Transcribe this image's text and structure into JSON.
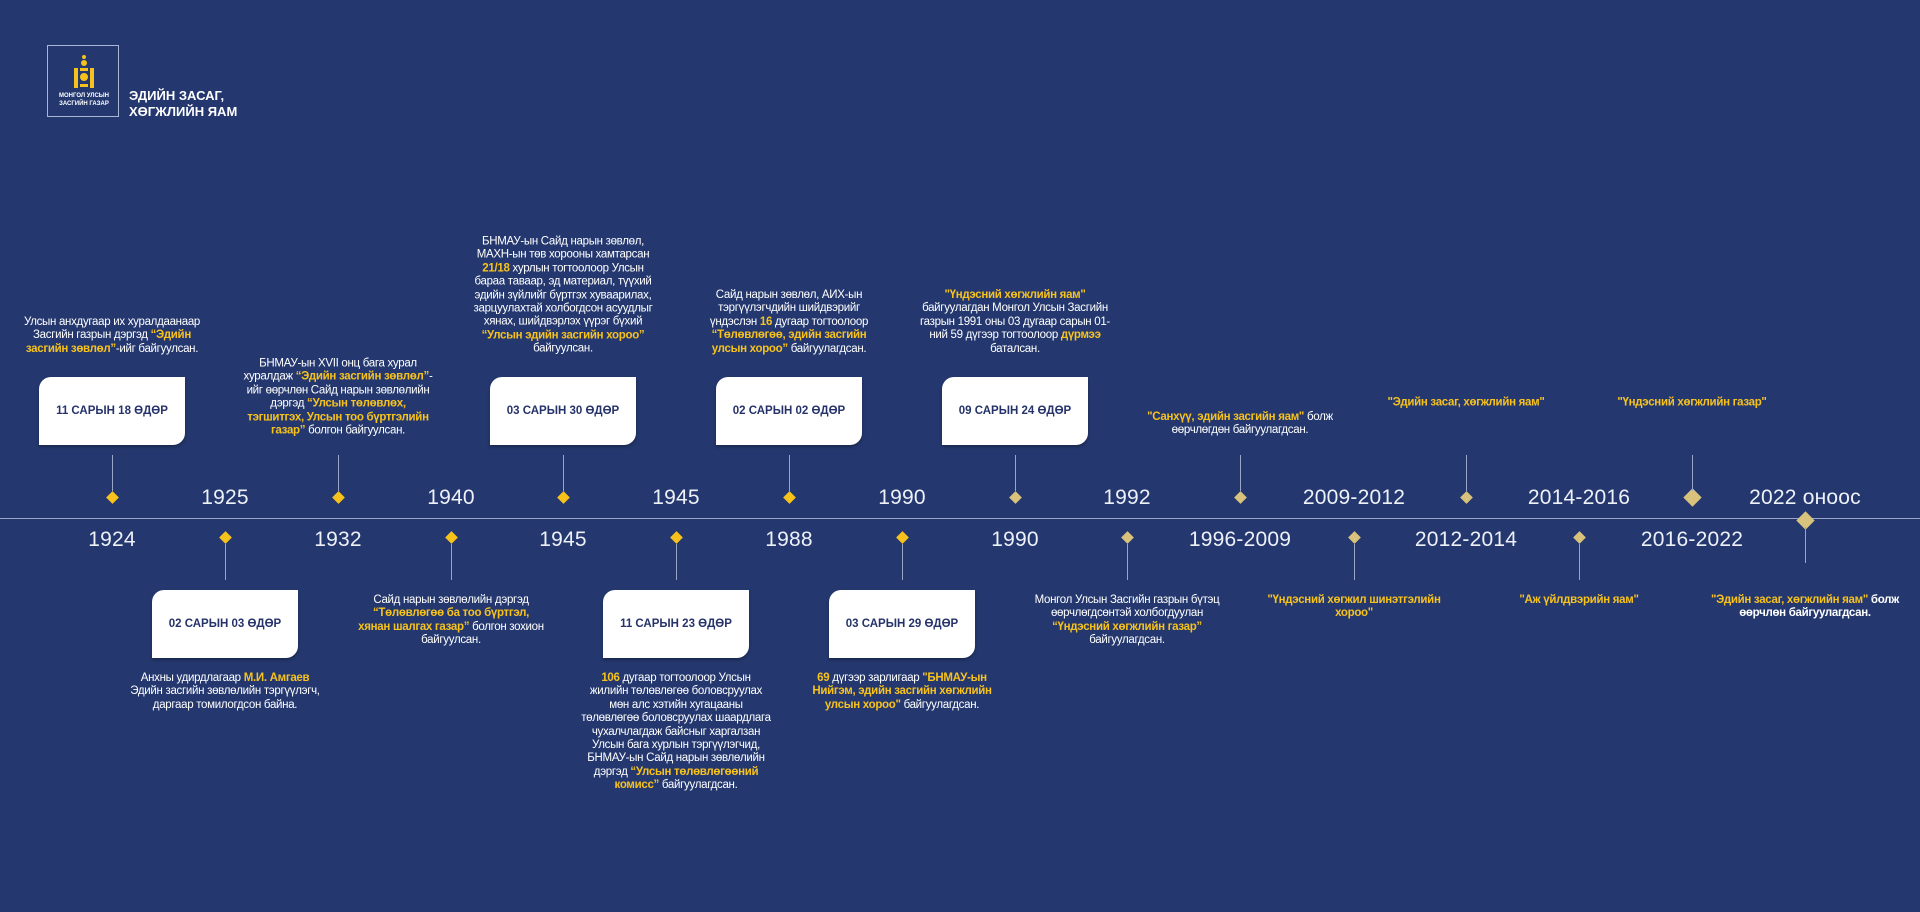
{
  "header": {
    "logo_text": [
      "МОНГОЛ УЛСЫН",
      "ЗАСГИЙН ГАЗАР"
    ],
    "title_lines": [
      "ЭДИЙН ЗАСАГ,",
      "ХӨГЖЛИЙН ЯАМ"
    ]
  },
  "colors": {
    "background": "#24386f",
    "accent": "#f7c21c",
    "accent_muted": "#d8c27c",
    "box_text": "#26336b"
  },
  "events": [
    {
      "year": "1924",
      "side": "upper",
      "date": "11 САРЫН 18 ӨДӨР",
      "desc": [
        {
          "t": "Улсын анхдугаар их хуралдаанаар Засгийн газрын дэргэд "
        },
        {
          "t": "“Эдийн засгийн зөвлөл”",
          "hl": true
        },
        {
          "t": "-ийг байгуулсан."
        }
      ]
    },
    {
      "year": "1925",
      "side": "lower",
      "date": "02 САРЫН 03 ӨДӨР",
      "desc": [
        {
          "t": "Анхны удирдлагаар "
        },
        {
          "t": "М.И. Амгаев",
          "hl": true
        },
        {
          "t": " Эдийн засгийн зөвлөлийн тэргүүлэгч, даргаар томилогдсон байна."
        }
      ]
    },
    {
      "year": "1932",
      "side": "upper",
      "desc": [
        {
          "t": "БНМАУ-ын XVII онц бага хурал хуралдаж "
        },
        {
          "t": "“Эдийн засгийн зөвлөл”",
          "hl": true
        },
        {
          "t": "-ийг өөрчлөн Сайд нарын зөвлөлийн дэргэд "
        },
        {
          "t": "“Улсын төлөвлөх, тэгшитгэх, Улсын тоо бүртгэлийн газар”",
          "hl": true
        },
        {
          "t": " болгон байгуулсан."
        }
      ]
    },
    {
      "year": "1940",
      "side": "lower",
      "desc": [
        {
          "t": "Сайд нарын зөвлөлийн дэргэд "
        },
        {
          "t": "“Төлөвлөгөө ба тоо бүртгэл, хянан шалгах газар”",
          "hl": true
        },
        {
          "t": " болгон зохион байгуулсан."
        }
      ]
    },
    {
      "year": "1945",
      "side": "upper",
      "date": "03 САРЫН 30 ӨДӨР",
      "desc": [
        {
          "t": "БНМАУ-ын Сайд нарын зөвлөл, МАХН-ын төв хорооны хамтарсан "
        },
        {
          "t": "21/18",
          "hl": true
        },
        {
          "t": " хурлын тогтоолоор Улсын бараа таваар, эд материал, түүхий эдийн зүйлийг бүртгэх хуваарилах, зарцуулахтай холбогдсон асуудлыг хянах, шийдвэрлэх үүрэг бүхий "
        },
        {
          "t": "“Улсын эдийн засгийн хороо”",
          "hl": true
        },
        {
          "t": " байгуулсан."
        }
      ]
    },
    {
      "year": "1945",
      "side": "lower",
      "date": "11 САРЫН 23 ӨДӨР",
      "desc": [
        {
          "t": "106",
          "hl": true
        },
        {
          "t": " дугаар тогтоолоор Улсын жилийн төлөвлөгөө боловсруулах мөн алс хэтийн хугацааны төлөвлөгөө боловсруулах шаардлага чухалчлагдаж байсныг харгалзан Улсын бага хурлын тэргүүлэгчид, БНМАУ-ын Сайд нарын зөвлөлийн дэргэд "
        },
        {
          "t": "“Улсын төлөвлөгөөний комисс”",
          "hl": true
        },
        {
          "t": " байгуулагдсан."
        }
      ]
    },
    {
      "year": "1988",
      "side": "upper",
      "date": "02 САРЫН 02 ӨДӨР",
      "desc": [
        {
          "t": "Сайд нарын зөвлөл, АИХ-ын тэргүүлэгчдийн шийдвэрийг үндэслэн "
        },
        {
          "t": "16",
          "hl": true
        },
        {
          "t": " дугаар тогтоолоор "
        },
        {
          "t": "“Төлөвлөгөө, эдийн засгийн улсын хороо”",
          "hl": true
        },
        {
          "t": " байгуулагдсан."
        }
      ]
    },
    {
      "year": "1990",
      "side": "lower",
      "date": "03 САРЫН 29 ӨДӨР",
      "desc": [
        {
          "t": "69",
          "hl": true
        },
        {
          "t": " дүгээр зарлигаар "
        },
        {
          "t": "\"БНМАУ-ын Нийгэм, эдийн засгийн хөгжлийн улсын хороо\"",
          "hl": true
        },
        {
          "t": " байгуулагдсан."
        }
      ]
    },
    {
      "year": "1990",
      "side": "upper",
      "date": "09 САРЫН 24 ӨДӨР",
      "desc": [
        {
          "t": "\"Үндэсний хөгжлийн яам\"",
          "hl": true
        },
        {
          "t": " байгуулагдан Монгол Улсын Засгийн газрын 1991 оны 03 дугаар сарын 01-ний 59 дүгээр тогтоолоор "
        },
        {
          "t": "дүрмээ",
          "hl": true
        },
        {
          "t": " баталсан."
        }
      ]
    },
    {
      "year": "1992",
      "side": "lower",
      "desc": [
        {
          "t": "Монгол Улсын Засгийн газрын бүтэц өөрчлөгдсөнтэй холбогдуулан "
        },
        {
          "t": "“Үндэсний хөгжлийн газар”",
          "hl": true
        },
        {
          "t": " байгуулагдсан."
        }
      ]
    },
    {
      "year": "1996-2009",
      "side": "upper",
      "desc": [
        {
          "t": "\"Санхүү, эдийн засгийн яам\"",
          "hl": true
        },
        {
          "t": " болж өөрчлөгдөн байгуулагдсан."
        }
      ]
    },
    {
      "year": "2009-2012",
      "side": "lower",
      "desc": [
        {
          "t": "\"Үндэсний хөгжил шинэтгэлийн хороо\"",
          "hl": true
        }
      ]
    },
    {
      "year": "2012-2014",
      "side": "upper",
      "desc": [
        {
          "t": "\"Эдийн засаг, хөгжлийн яам\"",
          "hl": true
        }
      ]
    },
    {
      "year": "2014-2016",
      "side": "lower",
      "desc": [
        {
          "t": "\"Аж үйлдвэрийн яам\"",
          "hl": true
        }
      ]
    },
    {
      "year": "2016-2022",
      "side": "upper",
      "desc": [
        {
          "t": "\"Үндэсний хөгжлийн газар\"",
          "hl": true
        }
      ]
    },
    {
      "year": "2022 оноос",
      "side": "lower",
      "desc": [
        {
          "t": "\"Эдийн засаг, хөгжлийн яам\"",
          "hl": true
        },
        {
          "t": " болж өөрчлөн байгуулагдсан.",
          "bold": true
        }
      ]
    }
  ]
}
